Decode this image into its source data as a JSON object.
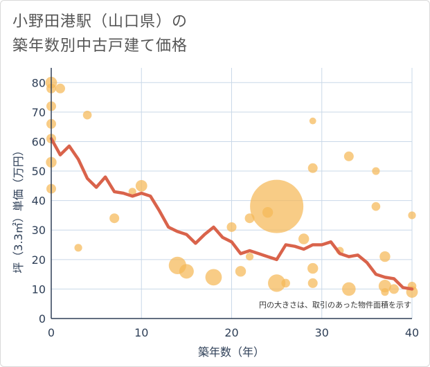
{
  "chart_data": {
    "type": "scatter",
    "title_lines": [
      "小野田港駅（山口県）の",
      "築年数別中古戸建て価格"
    ],
    "xlabel": "築年数（年）",
    "ylabel": "坪（3.3㎡）単価（万円）",
    "xlim": [
      0,
      40
    ],
    "ylim": [
      0,
      85
    ],
    "x_ticks": [
      0,
      10,
      20,
      30,
      40
    ],
    "y_ticks": [
      0,
      10,
      20,
      30,
      40,
      50,
      60,
      70,
      80
    ],
    "grid": true,
    "annotation": "円の大きさは、取引のあった物件面積を示す",
    "colors": {
      "bubble": "#f5b958",
      "line": "#d9634b",
      "grid": "#c9d8e8",
      "axis": "#2e3f57"
    },
    "bubbles": [
      {
        "x": 0,
        "y": 80,
        "size": 1.2
      },
      {
        "x": 0,
        "y": 78,
        "size": 1.0
      },
      {
        "x": 0,
        "y": 72,
        "size": 1.0
      },
      {
        "x": 0,
        "y": 66,
        "size": 1.0
      },
      {
        "x": 0,
        "y": 61,
        "size": 1.0
      },
      {
        "x": 0,
        "y": 53,
        "size": 1.1
      },
      {
        "x": 0,
        "y": 44,
        "size": 1.0
      },
      {
        "x": 1,
        "y": 78,
        "size": 1.0
      },
      {
        "x": 3,
        "y": 24,
        "size": 0.8
      },
      {
        "x": 4,
        "y": 69,
        "size": 0.9
      },
      {
        "x": 7,
        "y": 34,
        "size": 1.0
      },
      {
        "x": 9,
        "y": 43,
        "size": 0.8
      },
      {
        "x": 10,
        "y": 45,
        "size": 1.2
      },
      {
        "x": 14,
        "y": 18,
        "size": 1.8
      },
      {
        "x": 15,
        "y": 16,
        "size": 1.5
      },
      {
        "x": 18,
        "y": 14,
        "size": 1.7
      },
      {
        "x": 20,
        "y": 31,
        "size": 1.0
      },
      {
        "x": 21,
        "y": 16,
        "size": 1.1
      },
      {
        "x": 22,
        "y": 34,
        "size": 1.0
      },
      {
        "x": 22,
        "y": 21,
        "size": 0.8
      },
      {
        "x": 24,
        "y": 36,
        "size": 1.1
      },
      {
        "x": 25,
        "y": 38,
        "size": 5.5
      },
      {
        "x": 25,
        "y": 12,
        "size": 1.8
      },
      {
        "x": 26,
        "y": 12,
        "size": 0.9
      },
      {
        "x": 28,
        "y": 27,
        "size": 1.1
      },
      {
        "x": 29,
        "y": 67,
        "size": 0.7
      },
      {
        "x": 29,
        "y": 51,
        "size": 1.0
      },
      {
        "x": 29,
        "y": 17,
        "size": 1.1
      },
      {
        "x": 29,
        "y": 12,
        "size": 1.0
      },
      {
        "x": 32,
        "y": 23,
        "size": 0.8
      },
      {
        "x": 33,
        "y": 55,
        "size": 1.0
      },
      {
        "x": 33,
        "y": 10,
        "size": 1.4
      },
      {
        "x": 36,
        "y": 50,
        "size": 0.8
      },
      {
        "x": 36,
        "y": 38,
        "size": 0.9
      },
      {
        "x": 37,
        "y": 21,
        "size": 1.1
      },
      {
        "x": 37,
        "y": 11,
        "size": 1.3
      },
      {
        "x": 37,
        "y": 9,
        "size": 0.8
      },
      {
        "x": 38,
        "y": 10,
        "size": 1.0
      },
      {
        "x": 40,
        "y": 35,
        "size": 0.8
      },
      {
        "x": 40,
        "y": 11,
        "size": 0.9
      },
      {
        "x": 40,
        "y": 9,
        "size": 1.2
      }
    ],
    "trend_line": {
      "x": [
        0,
        1,
        2,
        3,
        4,
        5,
        6,
        7,
        8,
        9,
        10,
        11,
        12,
        13,
        14,
        15,
        16,
        17,
        18,
        19,
        20,
        21,
        22,
        23,
        24,
        25,
        26,
        27,
        28,
        29,
        30,
        31,
        32,
        33,
        34,
        35,
        36,
        37,
        38,
        39,
        40
      ],
      "y": [
        61,
        55.5,
        58.5,
        54,
        47.5,
        44.5,
        48,
        43,
        42.5,
        41.5,
        42.5,
        41.5,
        36.5,
        31,
        29.5,
        28.5,
        25.5,
        28.5,
        31,
        27.5,
        26,
        22,
        23,
        22,
        21,
        20,
        25,
        24.5,
        23.5,
        25,
        25,
        26,
        22,
        21,
        21.5,
        19,
        15,
        14,
        13.5,
        10.5,
        10
      ]
    }
  }
}
